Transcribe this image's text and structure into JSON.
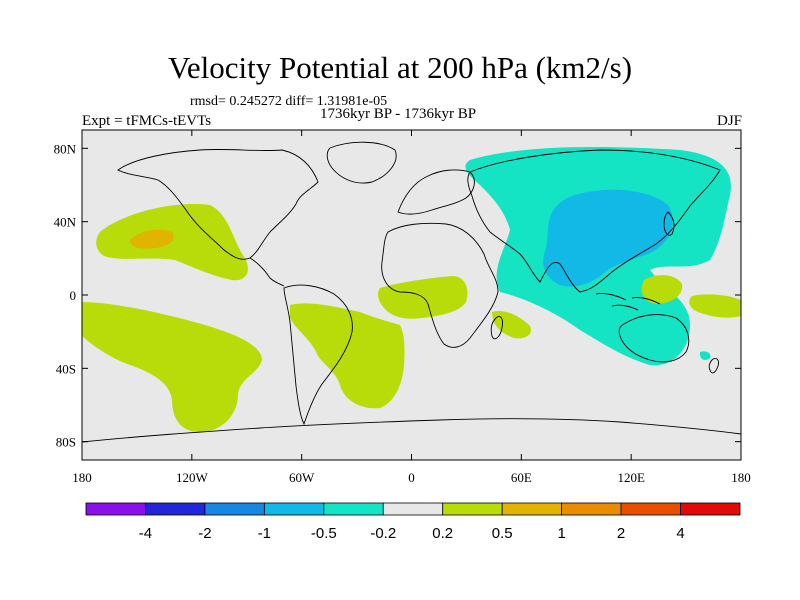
{
  "title": "Velocity Potential at 200 hPa (km2/s)",
  "stats": "rmsd= 0.245272 diff= 1.31981e-05",
  "period": "1736kyr BP - 1736kyr BP",
  "experiment": "Expt = tFMCs-tEVTs",
  "season": "DJF",
  "map": {
    "projection": "cylindrical equidistant",
    "lon_range": [
      -180,
      180
    ],
    "lat_range": [
      -90,
      90
    ],
    "background_color": "#e8e8e8",
    "lon_ticks": [
      {
        "value": -180,
        "label": "180"
      },
      {
        "value": -120,
        "label": "120W"
      },
      {
        "value": -60,
        "label": "60W"
      },
      {
        "value": 0,
        "label": "0"
      },
      {
        "value": 60,
        "label": "60E"
      },
      {
        "value": 120,
        "label": "120E"
      },
      {
        "value": 180,
        "label": "180"
      }
    ],
    "lat_ticks": [
      {
        "value": 80,
        "label": "80N"
      },
      {
        "value": 40,
        "label": "40N"
      },
      {
        "value": 0,
        "label": "0"
      },
      {
        "value": -40,
        "label": "40S"
      },
      {
        "value": -80,
        "label": "80S"
      }
    ]
  },
  "colorbar": {
    "colors": [
      "#8a10e8",
      "#2424d8",
      "#1a86e0",
      "#12b8e6",
      "#14e3c4",
      "#e8e8e8",
      "#b8dc0a",
      "#e0b400",
      "#e88c00",
      "#e84e00",
      "#e00a0a"
    ],
    "labels": [
      "-4",
      "-2",
      "-1",
      "-0.5",
      "-0.2",
      "0.2",
      "0.5",
      "1",
      "2",
      "4"
    ]
  }
}
